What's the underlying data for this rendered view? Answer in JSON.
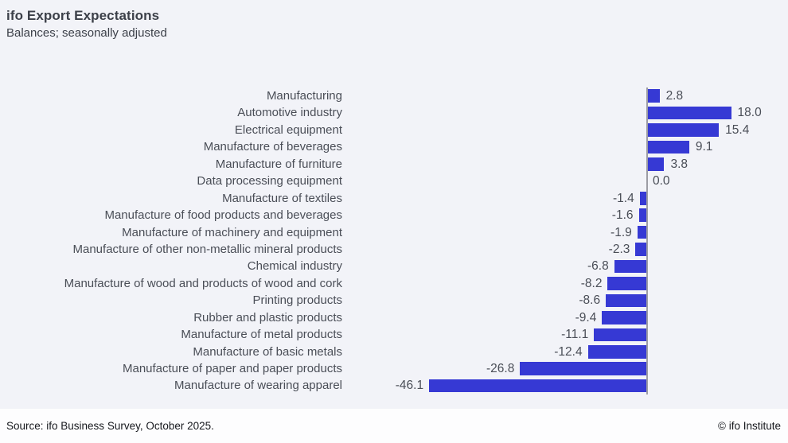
{
  "page": {
    "title": "ifo Export Expectations",
    "subtitle": "Balances; seasonally adjusted",
    "source": "Source: ifo Business Survey, October 2025.",
    "copyright": "© ifo Institute"
  },
  "theme": {
    "background": "#f2f3f8",
    "footer_background": "#fdfdfe",
    "bar_color": "#3639d4",
    "axis_color": "#9c9ca4",
    "title_color": "#3c4049",
    "label_color": "#4a4e57",
    "footer_text_color": "#16181d"
  },
  "chart_data": {
    "type": "bar",
    "orientation": "horizontal",
    "title": "ifo Export Expectations",
    "subtitle": "Balances; seasonally adjusted",
    "xlabel": "",
    "ylabel": "",
    "xlim": [
      -50,
      20
    ],
    "grid": false,
    "legend": false,
    "zero_axis_line": true,
    "value_labels_decimals": 1,
    "categories": [
      "Manufacturing",
      "Automotive industry",
      "Electrical equipment",
      "Manufacture of beverages",
      "Manufacture of furniture",
      "Data processing equipment",
      "Manufacture of textiles",
      "Manufacture of food products and beverages",
      "Manufacture of machinery and equipment",
      "Manufacture of other non-metallic mineral products",
      "Chemical industry",
      "Manufacture of wood and products of wood and cork",
      "Printing products",
      "Rubber and plastic products",
      "Manufacture of metal products",
      "Manufacture of basic metals",
      "Manufacture of paper and paper products",
      "Manufacture of wearing apparel"
    ],
    "values": [
      2.8,
      18.0,
      15.4,
      9.1,
      3.8,
      0.0,
      -1.4,
      -1.6,
      -1.9,
      -2.3,
      -6.8,
      -8.2,
      -8.6,
      -9.4,
      -11.1,
      -12.4,
      -26.8,
      -46.1
    ],
    "source": "Source: ifo Business Survey, October 2025.",
    "copyright": "© ifo Institute"
  }
}
